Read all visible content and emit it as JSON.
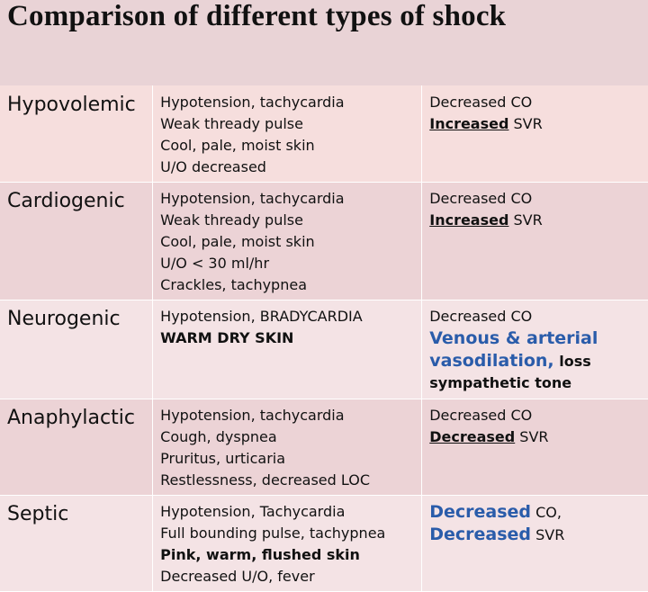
{
  "title": "Comparison of different types of shock",
  "rows": [
    {
      "type": "Hypovolemic",
      "signs": [
        "Hypotension, tachycardia",
        "Weak thready pulse",
        "Cool, pale, moist skin",
        "U/O decreased"
      ],
      "hemo": [
        [
          {
            "t": "Decreased CO"
          }
        ],
        [
          {
            "t": "Increased",
            "s": "u"
          },
          {
            "t": " SVR"
          }
        ]
      ]
    },
    {
      "type": "Cardiogenic",
      "signs": [
        "Hypotension, tachycardia",
        "Weak thready pulse",
        "Cool, pale, moist skin",
        "U/O < 30 ml/hr",
        "Crackles, tachypnea"
      ],
      "hemo": [
        [
          {
            "t": "Decreased CO"
          }
        ],
        [
          {
            "t": "Increased",
            "s": "u"
          },
          {
            "t": " SVR"
          }
        ]
      ]
    },
    {
      "type": "Neurogenic",
      "signs": [
        "Hypotension, BRADYCARDIA",
        {
          "t": "WARM DRY SKIN",
          "s": "b"
        }
      ],
      "hemo": [
        [
          {
            "t": "Decreased CO"
          }
        ],
        [
          {
            "t": "Venous & arterial",
            "s": "blue"
          }
        ],
        [
          {
            "t": "vasodilation,",
            "s": "blue"
          },
          {
            "t": " loss",
            "s": "b"
          }
        ],
        [
          {
            "t": "sympathetic tone",
            "s": "b"
          }
        ]
      ]
    },
    {
      "type": "Anaphylactic",
      "signs": [
        "Hypotension, tachycardia",
        "Cough, dyspnea",
        "Pruritus, urticaria",
        "Restlessness, decreased LOC"
      ],
      "hemo": [
        [
          {
            "t": "Decreased CO"
          }
        ],
        [
          {
            "t": "Decreased",
            "s": "u"
          },
          {
            "t": " SVR"
          }
        ]
      ]
    },
    {
      "type": "Septic",
      "signs": [
        "Hypotension, Tachycardia",
        "Full bounding pulse, tachypnea",
        {
          "t": "Pink, warm, flushed skin",
          "s": "b"
        },
        "Decreased U/O, fever"
      ],
      "hemo": [
        [
          {
            "t": "Decreased",
            "s": "blue"
          },
          {
            "t": " CO,"
          }
        ],
        [
          {
            "t": "Decreased",
            "s": "blue"
          },
          {
            "t": " SVR"
          }
        ]
      ]
    }
  ],
  "colors": {
    "page": "#e9d3d6",
    "blue_text": "#2a5caa",
    "grid_lines": "#ffffff"
  }
}
